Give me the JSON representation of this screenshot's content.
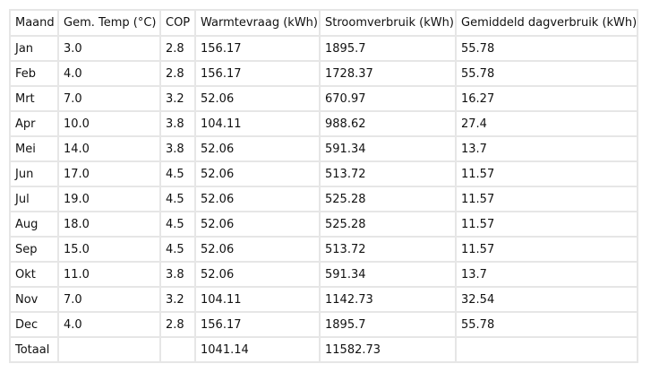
{
  "table": {
    "headers": [
      "Maand",
      "Gem. Temp (°C)",
      "COP",
      "Warmtevraag (kWh)",
      "Stroomverbruik (kWh)",
      "Gemiddeld dagverbruik (kWh)"
    ],
    "rows": [
      [
        "Jan",
        "3.0",
        "2.8",
        "156.17",
        "1895.7",
        "55.78"
      ],
      [
        "Feb",
        "4.0",
        "2.8",
        "156.17",
        "1728.37",
        "55.78"
      ],
      [
        "Mrt",
        "7.0",
        "3.2",
        "52.06",
        "670.97",
        "16.27"
      ],
      [
        "Apr",
        "10.0",
        "3.8",
        "104.11",
        "988.62",
        "27.4"
      ],
      [
        "Mei",
        "14.0",
        "3.8",
        "52.06",
        "591.34",
        "13.7"
      ],
      [
        "Jun",
        "17.0",
        "4.5",
        "52.06",
        "513.72",
        "11.57"
      ],
      [
        "Jul",
        "19.0",
        "4.5",
        "52.06",
        "525.28",
        "11.57"
      ],
      [
        "Aug",
        "18.0",
        "4.5",
        "52.06",
        "525.28",
        "11.57"
      ],
      [
        "Sep",
        "15.0",
        "4.5",
        "52.06",
        "513.72",
        "11.57"
      ],
      [
        "Okt",
        "11.0",
        "3.8",
        "52.06",
        "591.34",
        "13.7"
      ],
      [
        "Nov",
        "7.0",
        "3.2",
        "104.11",
        "1142.73",
        "32.54"
      ],
      [
        "Dec",
        "4.0",
        "2.8",
        "156.17",
        "1895.7",
        "55.78"
      ],
      [
        "Totaal",
        "",
        "",
        "1041.14",
        "11582.73",
        ""
      ]
    ]
  },
  "colors": {
    "border": "#e6e6e6",
    "text": "#111111",
    "background": "#ffffff"
  }
}
